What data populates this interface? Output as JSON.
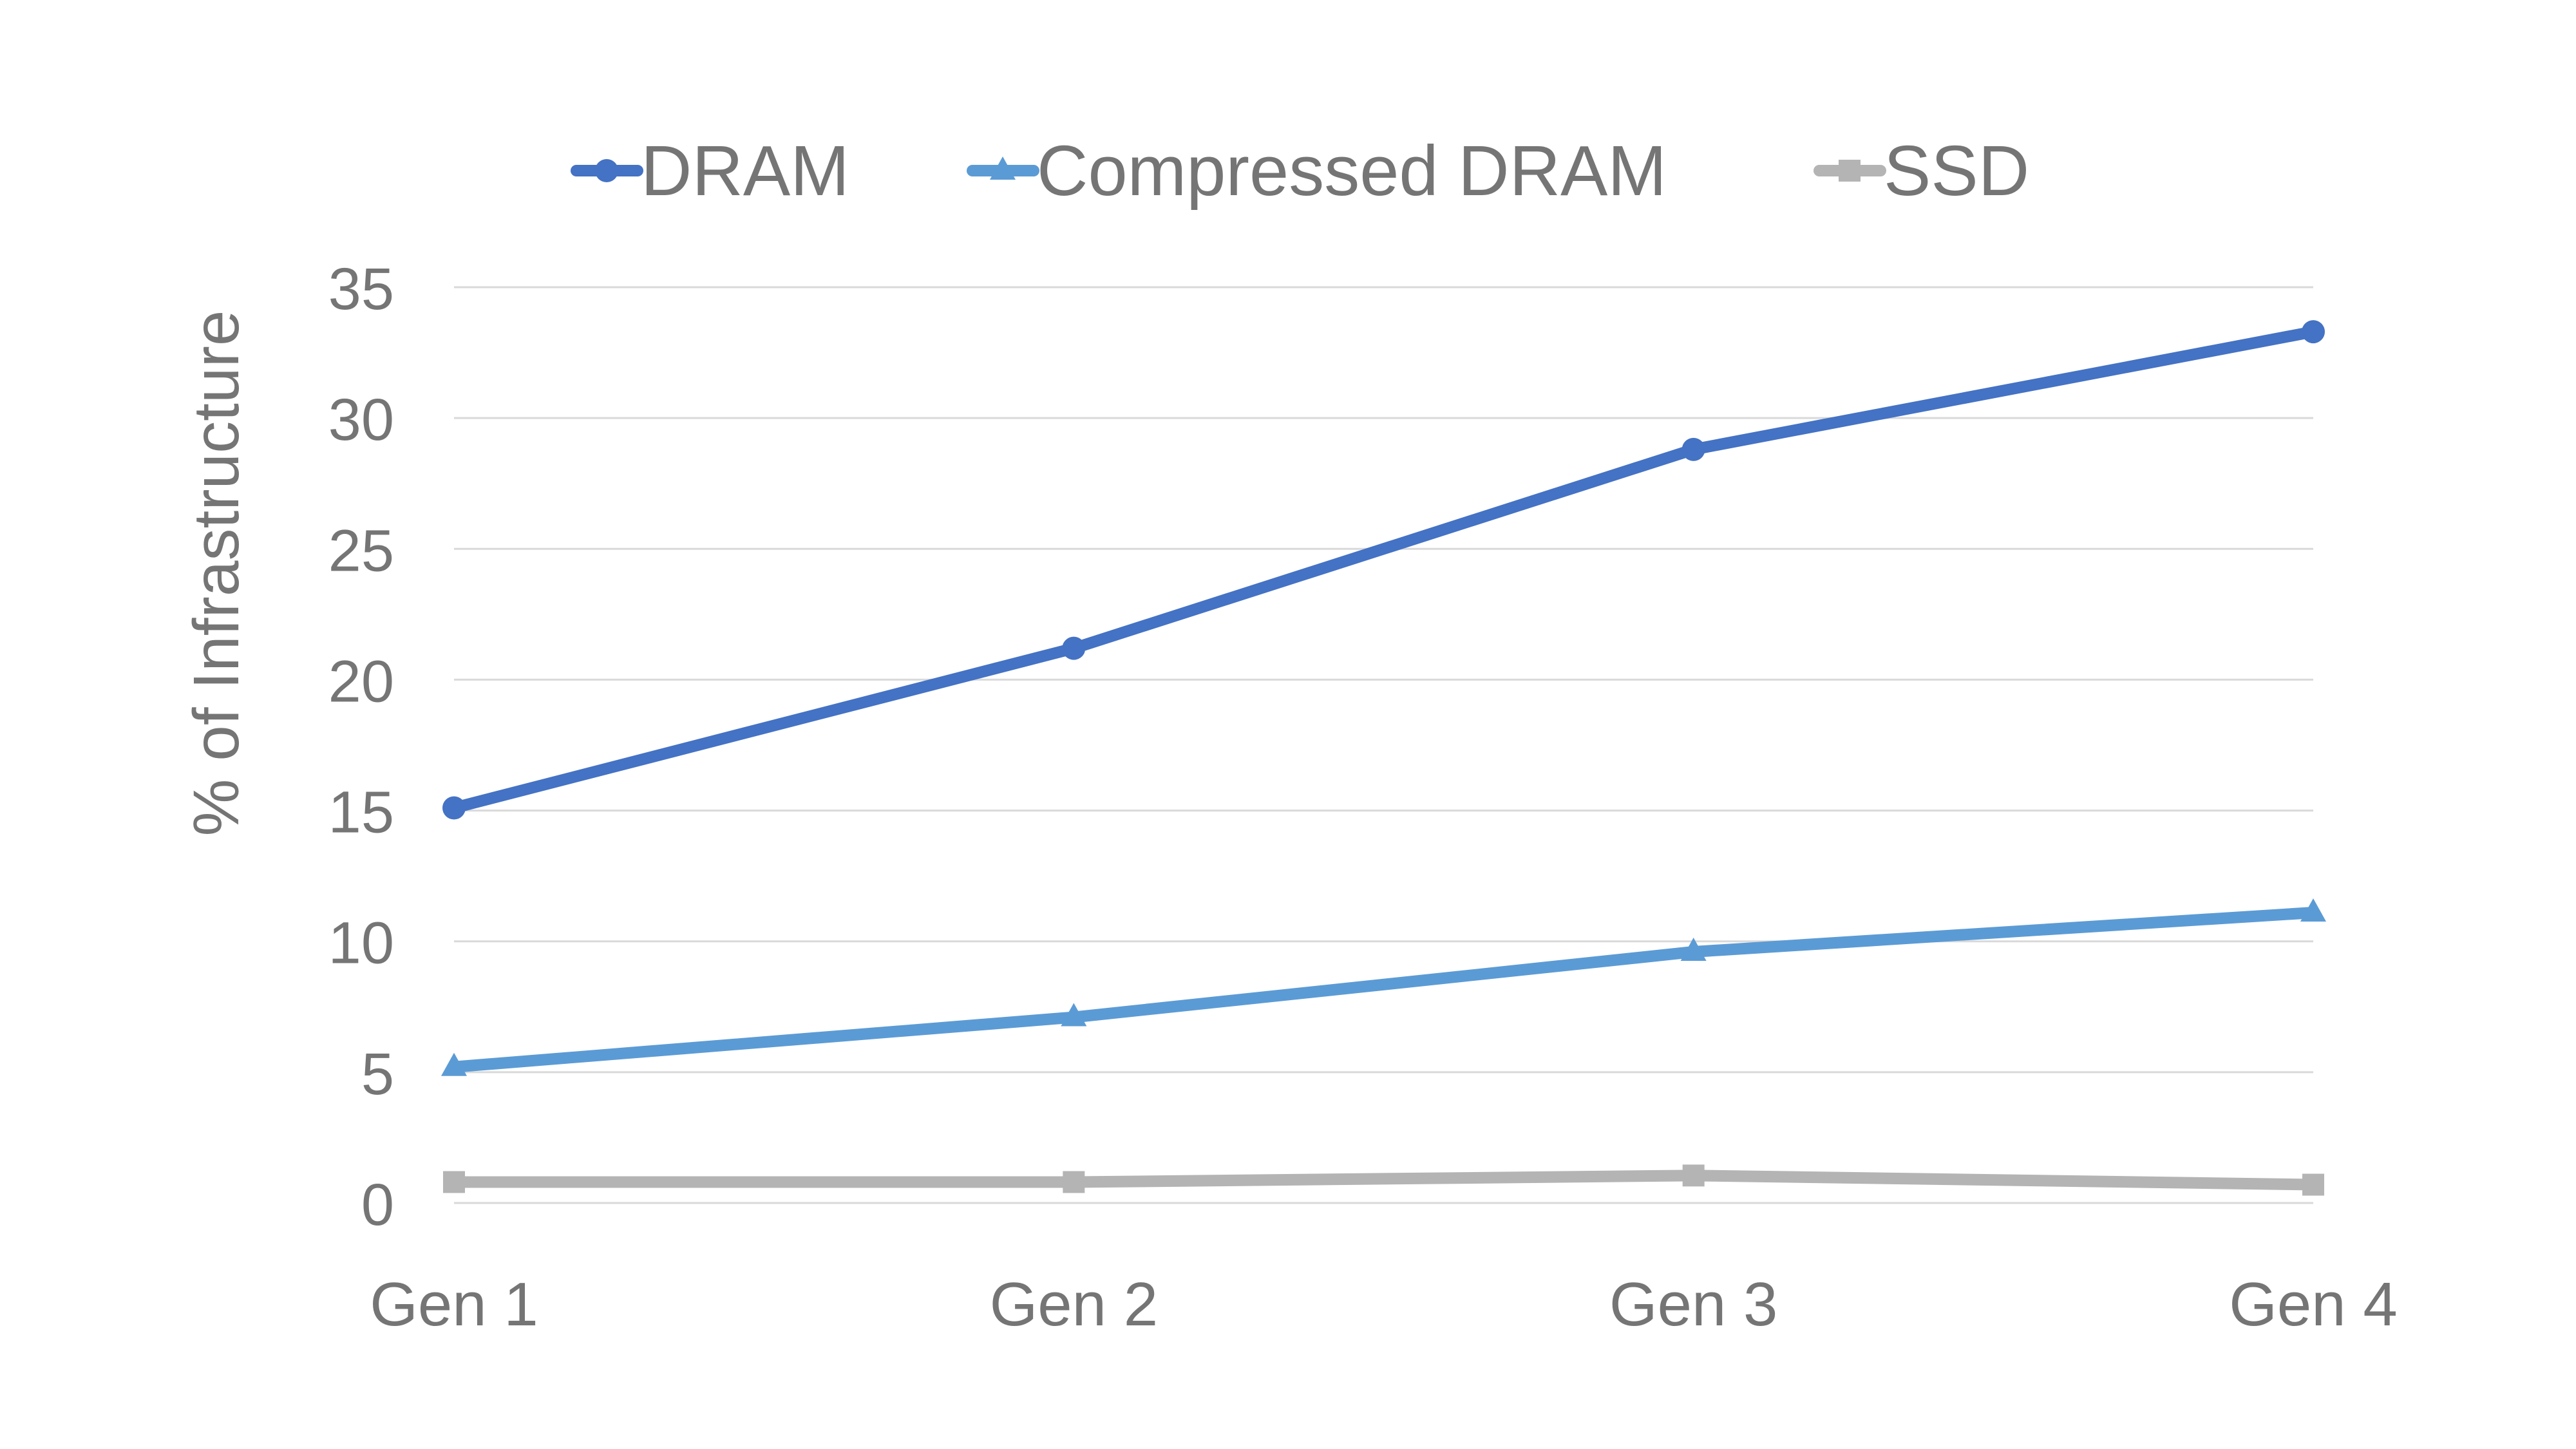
{
  "chart_data": {
    "type": "line",
    "title": "",
    "xlabel": "",
    "ylabel": "% of Infrastructure",
    "categories": [
      "Gen 1",
      "Gen 2",
      "Gen 3",
      "Gen 4"
    ],
    "ylim": [
      0,
      35
    ],
    "yticks": [
      0,
      5,
      10,
      15,
      20,
      25,
      30,
      35
    ],
    "grid": true,
    "legend": "top",
    "series": [
      {
        "name": "DRAM",
        "values": [
          15.1,
          21.2,
          28.8,
          33.3
        ],
        "color": "#4472C4",
        "marker": "circle"
      },
      {
        "name": "Compressed DRAM",
        "values": [
          5.2,
          7.1,
          9.6,
          11.1
        ],
        "color": "#5B9BD5",
        "marker": "triangle"
      },
      {
        "name": "SSD",
        "values": [
          0.8,
          0.8,
          1.05,
          0.7
        ],
        "color": "#B4B4B4",
        "marker": "square"
      }
    ]
  }
}
